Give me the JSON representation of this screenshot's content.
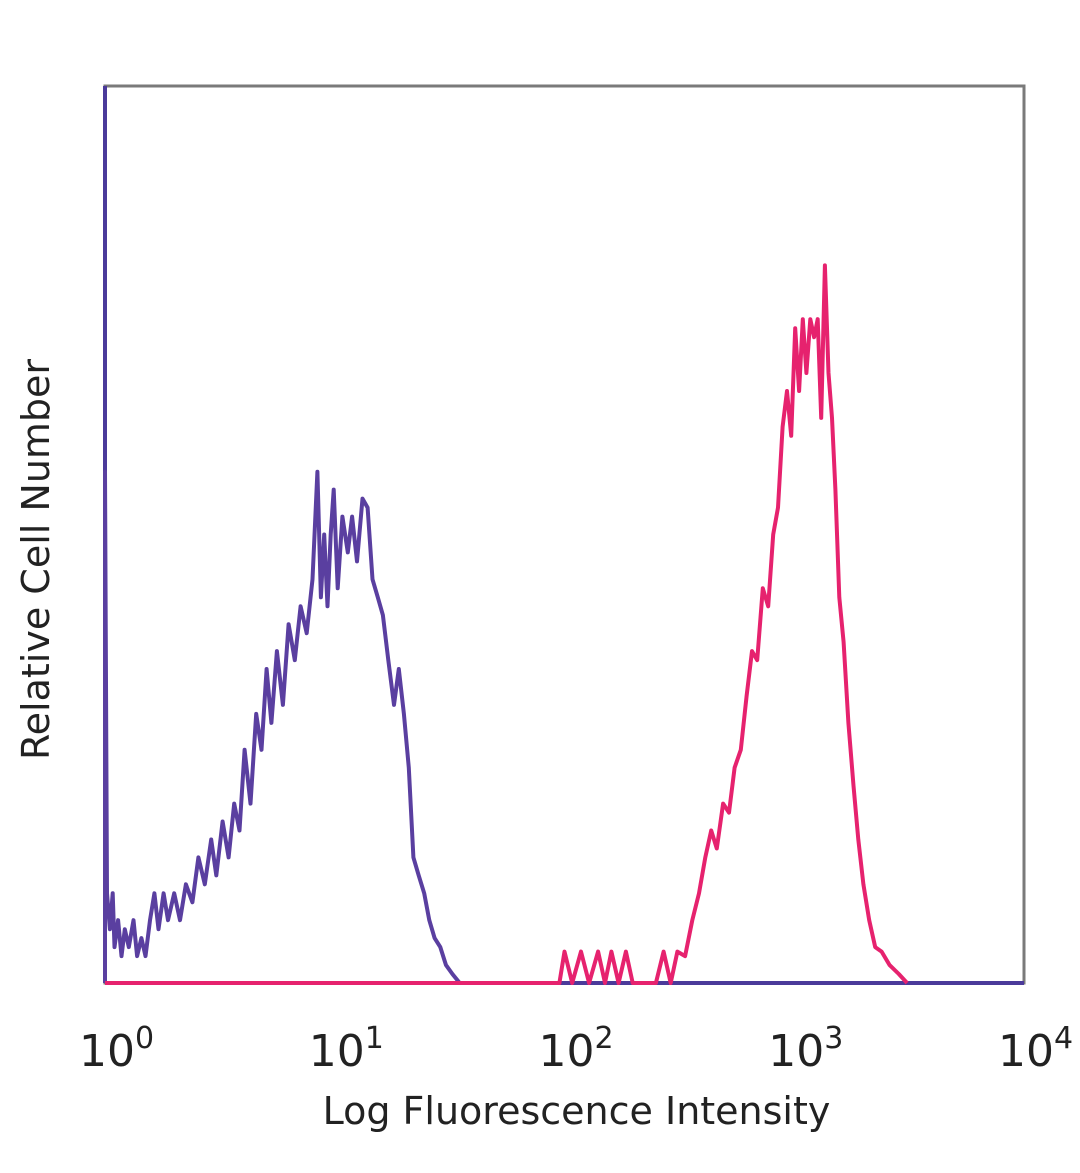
{
  "chart_data": {
    "type": "line",
    "xscale": "log",
    "xlim": [
      1,
      10000
    ],
    "xlabel": "Log Fluorescence Intensity",
    "ylabel": "Relative Cell Number",
    "grid": false,
    "legend": "none",
    "x_ticks": [
      {
        "base": "10",
        "exp": "0",
        "value": 1
      },
      {
        "base": "10",
        "exp": "1",
        "value": 10
      },
      {
        "base": "10",
        "exp": "2",
        "value": 100
      },
      {
        "base": "10",
        "exp": "3",
        "value": 1000
      },
      {
        "base": "10",
        "exp": "4",
        "value": 10000
      }
    ],
    "colors": {
      "frame": "#7a7a7a",
      "left_axis": "#4b3a9a",
      "bottom_axis": "#4b3a9a"
    },
    "series": [
      {
        "color": "#5a3fa0",
        "points": [
          [
            1.0,
            0.0
          ],
          [
            1.0,
            0.57
          ],
          [
            1.02,
            0.1
          ],
          [
            1.05,
            0.06
          ],
          [
            1.08,
            0.1
          ],
          [
            1.1,
            0.04
          ],
          [
            1.14,
            0.07
          ],
          [
            1.18,
            0.03
          ],
          [
            1.22,
            0.06
          ],
          [
            1.27,
            0.04
          ],
          [
            1.33,
            0.07
          ],
          [
            1.38,
            0.03
          ],
          [
            1.44,
            0.05
          ],
          [
            1.5,
            0.03
          ],
          [
            1.57,
            0.07
          ],
          [
            1.64,
            0.1
          ],
          [
            1.71,
            0.06
          ],
          [
            1.8,
            0.1
          ],
          [
            1.88,
            0.07
          ],
          [
            2.0,
            0.1
          ],
          [
            2.12,
            0.07
          ],
          [
            2.25,
            0.11
          ],
          [
            2.4,
            0.09
          ],
          [
            2.55,
            0.14
          ],
          [
            2.72,
            0.11
          ],
          [
            2.9,
            0.16
          ],
          [
            3.05,
            0.12
          ],
          [
            3.25,
            0.18
          ],
          [
            3.45,
            0.14
          ],
          [
            3.65,
            0.2
          ],
          [
            3.85,
            0.17
          ],
          [
            4.05,
            0.26
          ],
          [
            4.3,
            0.2
          ],
          [
            4.55,
            0.3
          ],
          [
            4.8,
            0.26
          ],
          [
            5.05,
            0.35
          ],
          [
            5.3,
            0.29
          ],
          [
            5.6,
            0.37
          ],
          [
            5.95,
            0.31
          ],
          [
            6.3,
            0.4
          ],
          [
            6.7,
            0.36
          ],
          [
            7.1,
            0.42
          ],
          [
            7.55,
            0.39
          ],
          [
            8.0,
            0.45
          ],
          [
            8.4,
            0.57
          ],
          [
            8.7,
            0.43
          ],
          [
            9.0,
            0.5
          ],
          [
            9.3,
            0.42
          ],
          [
            9.6,
            0.5
          ],
          [
            9.9,
            0.55
          ],
          [
            10.3,
            0.44
          ],
          [
            10.8,
            0.52
          ],
          [
            11.4,
            0.48
          ],
          [
            11.9,
            0.52
          ],
          [
            12.5,
            0.47
          ],
          [
            13.2,
            0.54
          ],
          [
            13.9,
            0.53
          ],
          [
            14.6,
            0.45
          ],
          [
            15.4,
            0.43
          ],
          [
            16.2,
            0.41
          ],
          [
            17.1,
            0.36
          ],
          [
            18.1,
            0.31
          ],
          [
            19.0,
            0.35
          ],
          [
            20.0,
            0.3
          ],
          [
            21.0,
            0.24
          ],
          [
            22.0,
            0.14
          ],
          [
            23.2,
            0.12
          ],
          [
            24.5,
            0.1
          ],
          [
            25.8,
            0.07
          ],
          [
            27.2,
            0.05
          ],
          [
            28.8,
            0.04
          ],
          [
            30.5,
            0.02
          ],
          [
            32.5,
            0.01
          ],
          [
            35.0,
            0.0
          ]
        ]
      },
      {
        "color": "#e6226e",
        "points": [
          [
            1.0,
            0.0
          ],
          [
            95.0,
            0.0
          ],
          [
            100.0,
            0.035
          ],
          [
            108.0,
            0.0
          ],
          [
            118.0,
            0.035
          ],
          [
            128.0,
            0.0
          ],
          [
            140.0,
            0.035
          ],
          [
            150.0,
            0.0
          ],
          [
            160.0,
            0.035
          ],
          [
            172.0,
            0.0
          ],
          [
            185.0,
            0.035
          ],
          [
            198.0,
            0.0
          ],
          [
            250.0,
            0.0
          ],
          [
            270.0,
            0.035
          ],
          [
            290.0,
            0.0
          ],
          [
            310.0,
            0.035
          ],
          [
            335.0,
            0.03
          ],
          [
            360.0,
            0.07
          ],
          [
            385.0,
            0.1
          ],
          [
            410.0,
            0.14
          ],
          [
            435.0,
            0.17
          ],
          [
            460.0,
            0.15
          ],
          [
            490.0,
            0.2
          ],
          [
            520.0,
            0.19
          ],
          [
            550.0,
            0.24
          ],
          [
            585.0,
            0.26
          ],
          [
            620.0,
            0.32
          ],
          [
            655.0,
            0.37
          ],
          [
            690.0,
            0.36
          ],
          [
            730.0,
            0.44
          ],
          [
            770.0,
            0.42
          ],
          [
            810.0,
            0.5
          ],
          [
            850.0,
            0.53
          ],
          [
            890.0,
            0.62
          ],
          [
            930.0,
            0.66
          ],
          [
            970.0,
            0.61
          ],
          [
            1010.0,
            0.73
          ],
          [
            1050.0,
            0.66
          ],
          [
            1090.0,
            0.74
          ],
          [
            1130.0,
            0.68
          ],
          [
            1175.0,
            0.74
          ],
          [
            1220.0,
            0.72
          ],
          [
            1265.0,
            0.74
          ],
          [
            1310.0,
            0.63
          ],
          [
            1360.0,
            0.8
          ],
          [
            1410.0,
            0.68
          ],
          [
            1460.0,
            0.63
          ],
          [
            1510.0,
            0.55
          ],
          [
            1570.0,
            0.43
          ],
          [
            1640.0,
            0.38
          ],
          [
            1720.0,
            0.29
          ],
          [
            1810.0,
            0.22
          ],
          [
            1900.0,
            0.16
          ],
          [
            2000.0,
            0.11
          ],
          [
            2120.0,
            0.07
          ],
          [
            2250.0,
            0.04
          ],
          [
            2400.0,
            0.035
          ],
          [
            2600.0,
            0.02
          ],
          [
            2850.0,
            0.01
          ],
          [
            3100.0,
            0.0
          ]
        ]
      }
    ]
  }
}
